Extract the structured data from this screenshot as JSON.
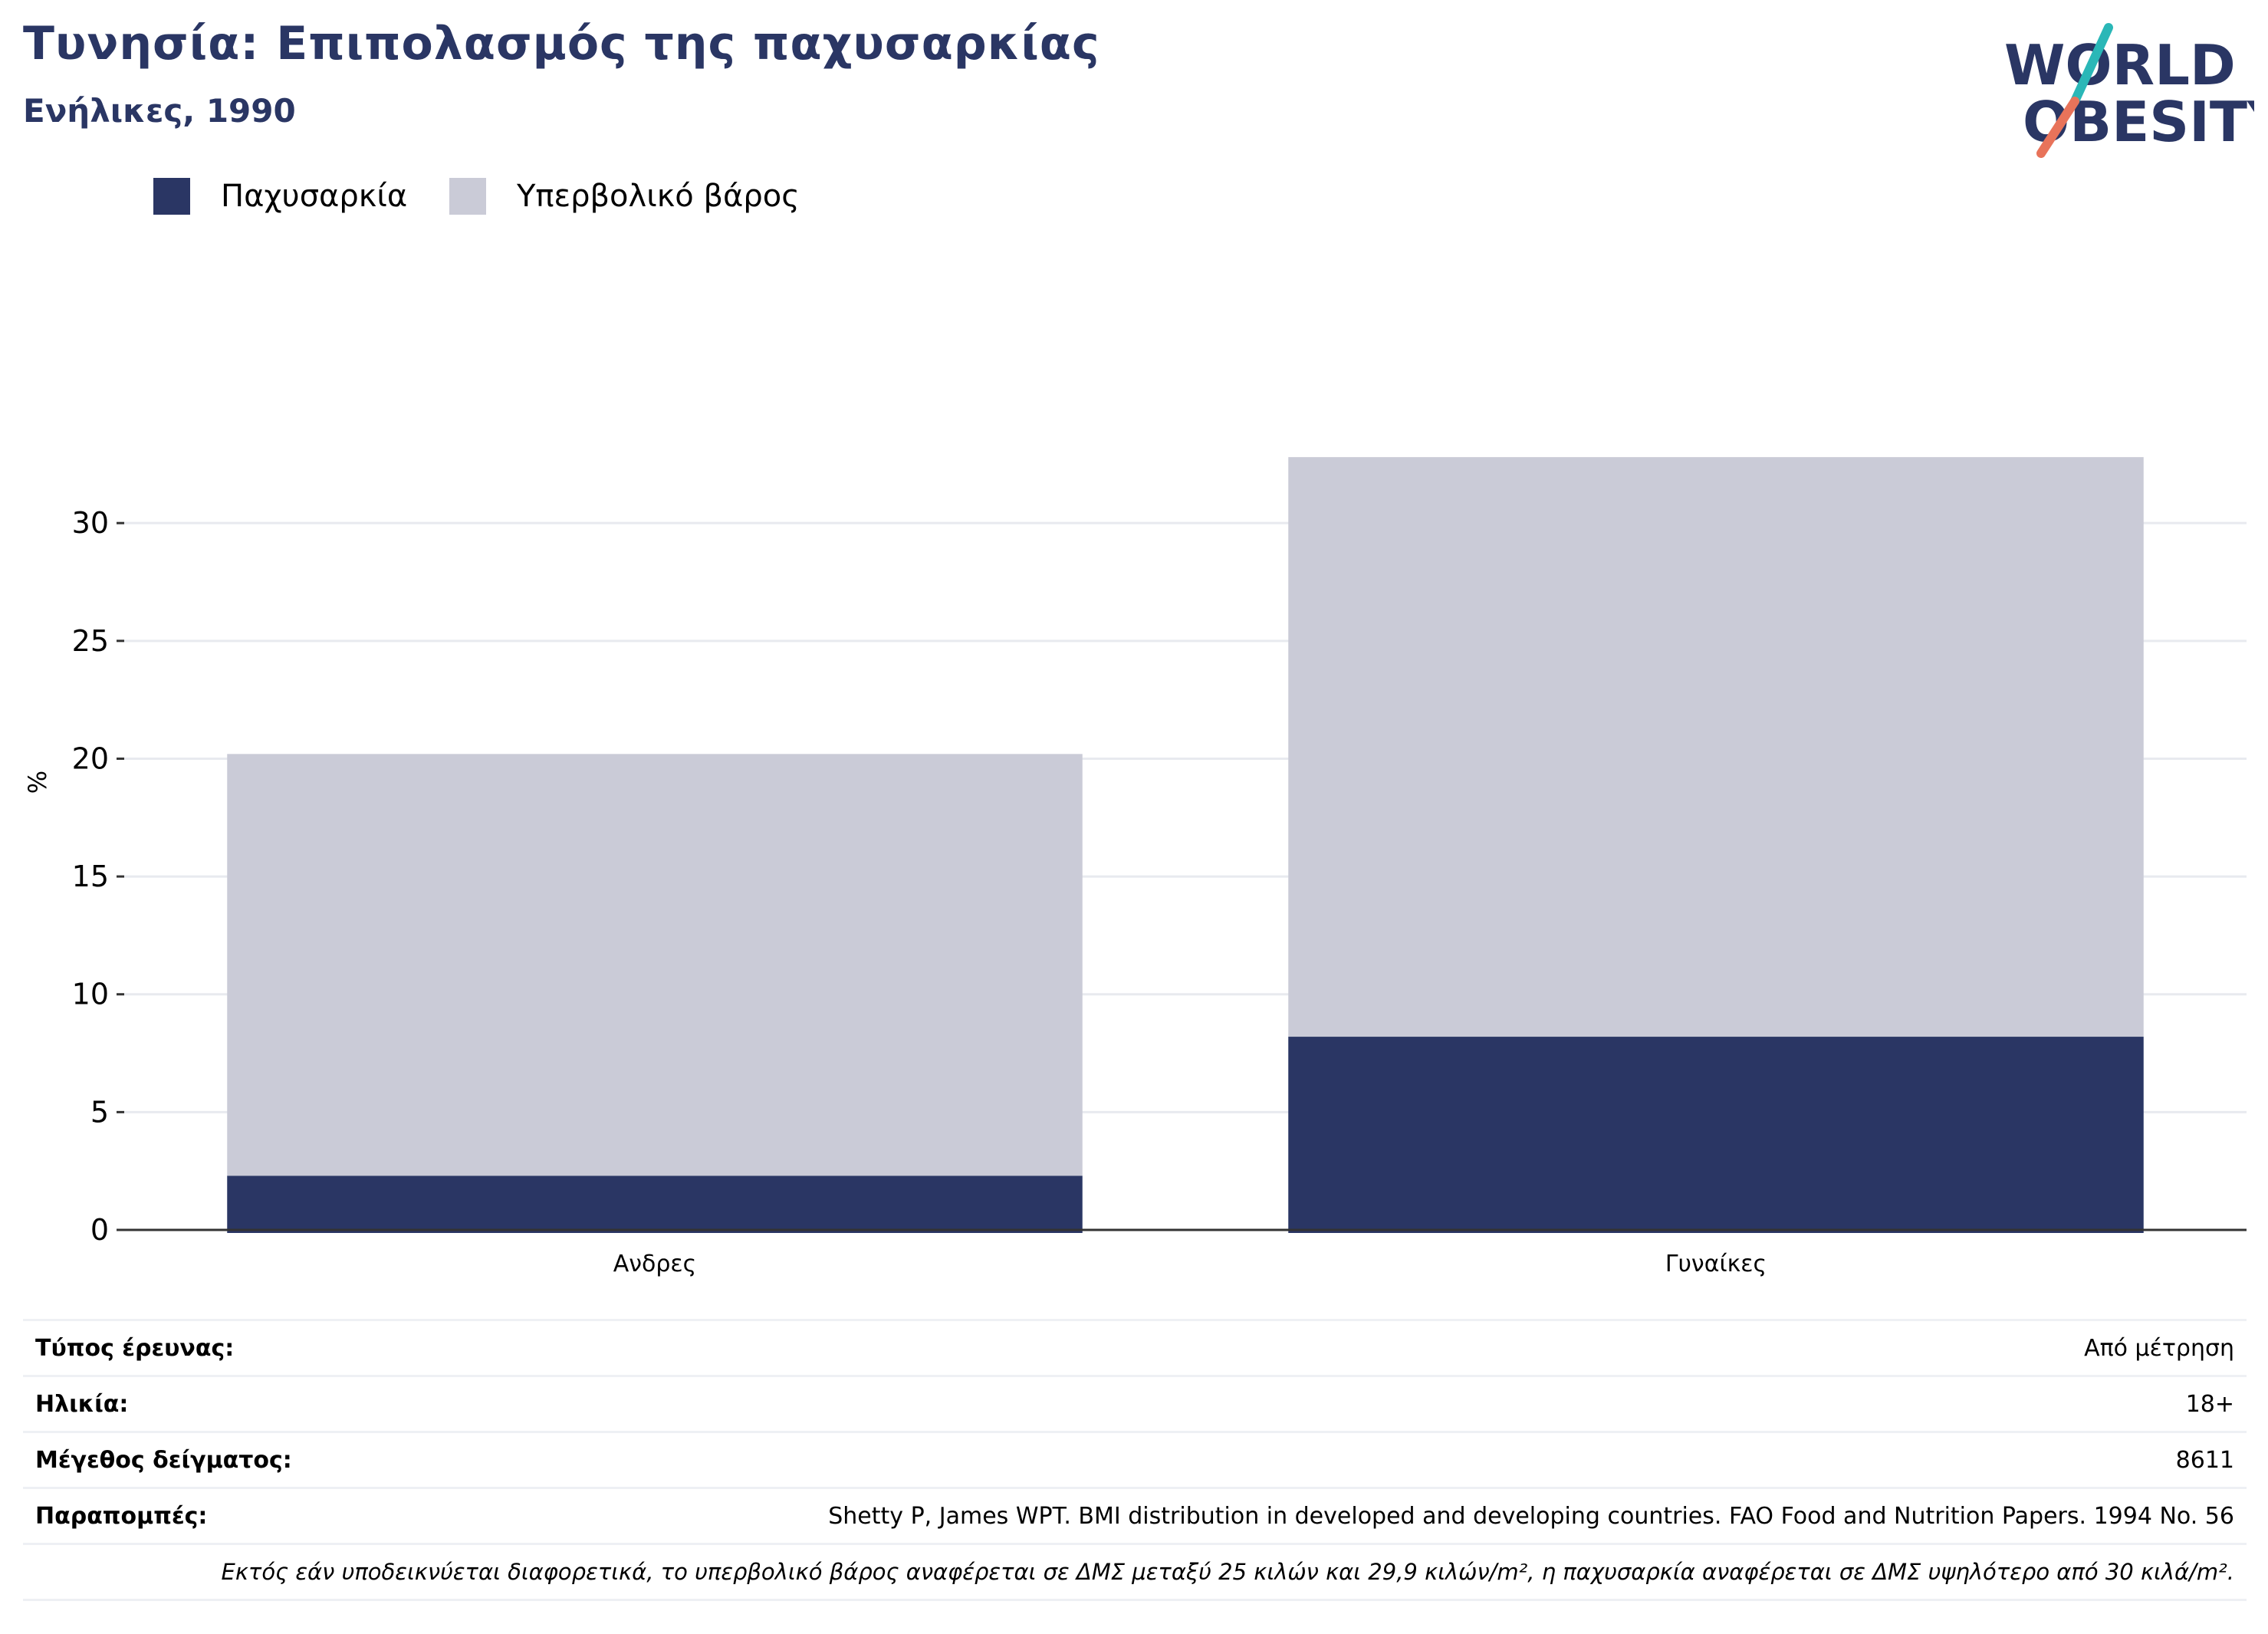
{
  "header": {
    "title": "Τυνησία: Επιπολασμός της παχυσαρκίας",
    "subtitle": "Ενήλικες, 1990"
  },
  "logo": {
    "line1": "WORLD",
    "line2": "OBESITY",
    "accent_teal": "#2ab7b7",
    "accent_coral": "#e8735a",
    "text_color": "#2a3664"
  },
  "legend": [
    {
      "label": "Παχυσαρκία",
      "color": "#2a3664"
    },
    {
      "label": "Υπερβολικό βάρος",
      "color": "#cacbd7"
    }
  ],
  "chart_data": {
    "type": "bar",
    "stacked": true,
    "categories": [
      "Ανδρες",
      "Γυναίκες"
    ],
    "series": [
      {
        "name": "Παχυσαρκία",
        "values": [
          2.3,
          8.2
        ],
        "color": "#2a3664"
      },
      {
        "name": "Υπερβολικό βάρος",
        "values": [
          17.9,
          24.6
        ],
        "color": "#cacbd7"
      }
    ],
    "ylabel": "%",
    "ylim": [
      0,
      33
    ],
    "yticks": [
      0,
      5,
      10,
      15,
      20,
      25,
      30
    ],
    "grid": true
  },
  "info": [
    {
      "label": "Τύπος έρευνας:",
      "value": "Από μέτρηση"
    },
    {
      "label": "Ηλικία:",
      "value": "18+"
    },
    {
      "label": "Μέγεθος δείγματος:",
      "value": "8611"
    },
    {
      "label": "Παραπομπές:",
      "value": "Shetty P, James WPT. BMI distribution in developed and developing countries. FAO Food and Nutrition Papers. 1994 No. 56"
    }
  ],
  "footnote": "Εκτός εάν υποδεικνύεται διαφορετικά, το υπερβολικό βάρος αναφέρεται σε ΔΜΣ μεταξύ 25 κιλών και 29,9 κιλών/m², η παχυσαρκία αναφέρεται σε ΔΜΣ υψηλότερο από 30 κιλά/m²."
}
